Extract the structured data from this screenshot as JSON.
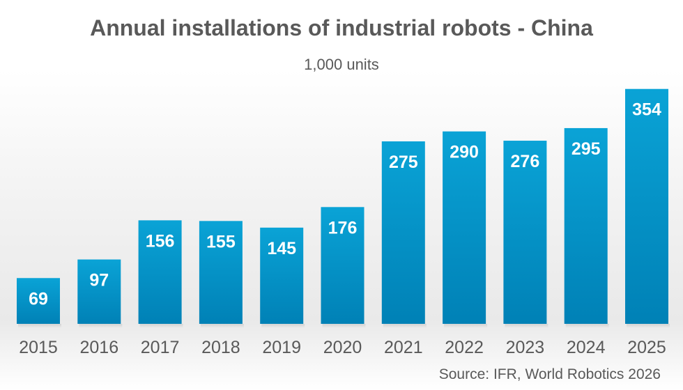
{
  "chart_data": {
    "type": "bar",
    "title": "Annual installations of industrial robots - China",
    "subtitle": "1,000 units",
    "categories": [
      "2015",
      "2016",
      "2017",
      "2018",
      "2019",
      "2020",
      "2021",
      "2022",
      "2023",
      "2024",
      "2025"
    ],
    "values": [
      69,
      97,
      156,
      155,
      145,
      176,
      275,
      290,
      276,
      295,
      354
    ],
    "data_labels": [
      "69",
      "97",
      "156",
      "155",
      "145",
      "176",
      "275",
      "290",
      "276",
      "295",
      "354"
    ],
    "ylim": [
      0,
      360
    ],
    "grid": false,
    "legend": "none",
    "source": "Source: IFR, World Robotics 2026"
  },
  "colors": {
    "bar_top": "#0aa3d6",
    "bar_bottom": "#0081b6",
    "text": "#595959"
  }
}
